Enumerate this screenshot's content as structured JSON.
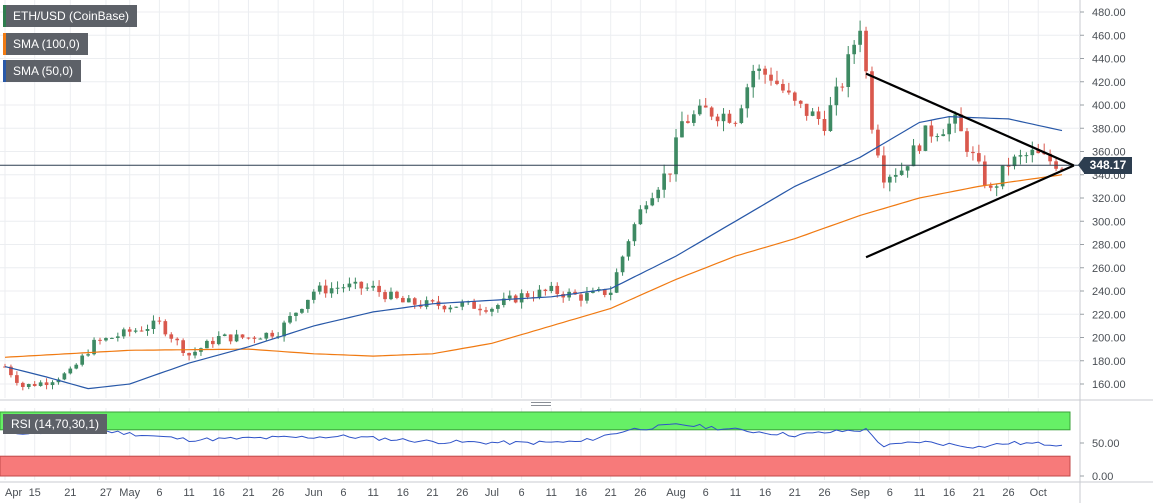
{
  "legend": {
    "symbol": "ETH/USD (CoinBase)",
    "sma100": "SMA (100,0)",
    "sma50": "SMA (50,0)"
  },
  "rsi_legend": "RSI (14,70,30,1)",
  "current_price": "348.17",
  "colors": {
    "bull": "#3e8a63",
    "bear": "#d9584d",
    "sma100": "#f07a12",
    "sma50": "#2858a8",
    "triangle": "#000000",
    "rsi_line": "#2f53c8",
    "rsi_overbought": "#66f066",
    "rsi_oversold": "#f77a7a",
    "symbol_swatch": "#2e7d4e"
  },
  "chart_data": {
    "type": "candlestick",
    "title": "ETH/USD (CoinBase)",
    "y_axis": {
      "range": [
        145,
        488
      ],
      "ticks": [
        160,
        180,
        200,
        220,
        240,
        260,
        280,
        300,
        320,
        340,
        360,
        380,
        400,
        420,
        440,
        460,
        480
      ],
      "tick_labels": [
        "160.00",
        "180.00",
        "200.00",
        "220.00",
        "240.00",
        "260.00",
        "280.00",
        "300.00",
        "320.00",
        "340.00",
        "360.00",
        "380.00",
        "400.00",
        "420.00",
        "440.00",
        "460.00",
        "480.00"
      ],
      "position": "right"
    },
    "x_axis": {
      "start": "2020-04-10",
      "end": "2020-10-05",
      "tick_dates": [
        "2020-04-10",
        "2020-04-15",
        "2020-04-21",
        "2020-04-27",
        "2020-05-01",
        "2020-05-06",
        "2020-05-11",
        "2020-05-16",
        "2020-05-21",
        "2020-05-26",
        "2020-06-01",
        "2020-06-06",
        "2020-06-11",
        "2020-06-16",
        "2020-06-21",
        "2020-06-26",
        "2020-07-01",
        "2020-07-06",
        "2020-07-11",
        "2020-07-16",
        "2020-07-21",
        "2020-07-26",
        "2020-08-01",
        "2020-08-06",
        "2020-08-11",
        "2020-08-16",
        "2020-08-21",
        "2020-08-26",
        "2020-09-01",
        "2020-09-06",
        "2020-09-11",
        "2020-09-16",
        "2020-09-21",
        "2020-09-26",
        "2020-10-01"
      ],
      "tick_labels": [
        "Apr",
        "15",
        "21",
        "27",
        "May",
        "6",
        "11",
        "16",
        "21",
        "26",
        "Jun",
        "6",
        "11",
        "16",
        "21",
        "26",
        "Jul",
        "6",
        "11",
        "16",
        "21",
        "26",
        "Aug",
        "6",
        "11",
        "16",
        "21",
        "26",
        "Sep",
        "6",
        "11",
        "16",
        "21",
        "26",
        "Oct"
      ]
    },
    "price_anchors": [
      [
        "2020-04-10",
        175
      ],
      [
        "2020-04-13",
        158
      ],
      [
        "2020-04-17",
        162
      ],
      [
        "2020-04-21",
        170
      ],
      [
        "2020-04-25",
        195
      ],
      [
        "2020-05-01",
        205
      ],
      [
        "2020-05-06",
        212
      ],
      [
        "2020-05-11",
        185
      ],
      [
        "2020-05-16",
        200
      ],
      [
        "2020-05-21",
        200
      ],
      [
        "2020-05-26",
        205
      ],
      [
        "2020-06-01",
        240
      ],
      [
        "2020-06-06",
        244
      ],
      [
        "2020-06-11",
        242
      ],
      [
        "2020-06-16",
        230
      ],
      [
        "2020-06-21",
        228
      ],
      [
        "2020-06-26",
        228
      ],
      [
        "2020-07-01",
        226
      ],
      [
        "2020-07-06",
        236
      ],
      [
        "2020-07-11",
        240
      ],
      [
        "2020-07-16",
        235
      ],
      [
        "2020-07-21",
        240
      ],
      [
        "2020-07-24",
        285
      ],
      [
        "2020-07-27",
        320
      ],
      [
        "2020-07-31",
        345
      ],
      [
        "2020-08-02",
        385
      ],
      [
        "2020-08-06",
        395
      ],
      [
        "2020-08-11",
        390
      ],
      [
        "2020-08-14",
        430
      ],
      [
        "2020-08-17",
        425
      ],
      [
        "2020-08-21",
        400
      ],
      [
        "2020-08-26",
        385
      ],
      [
        "2020-08-29",
        420
      ],
      [
        "2020-09-01",
        470
      ],
      [
        "2020-09-03",
        385
      ],
      [
        "2020-09-05",
        340
      ],
      [
        "2020-09-08",
        345
      ],
      [
        "2020-09-12",
        375
      ],
      [
        "2020-09-17",
        385
      ],
      [
        "2020-09-21",
        345
      ],
      [
        "2020-09-23",
        325
      ],
      [
        "2020-09-26",
        350
      ],
      [
        "2020-09-30",
        358
      ],
      [
        "2020-10-05",
        348
      ]
    ],
    "sma50_anchors": [
      [
        "2020-04-10",
        175
      ],
      [
        "2020-04-17",
        166
      ],
      [
        "2020-04-24",
        156
      ],
      [
        "2020-05-01",
        160
      ],
      [
        "2020-05-11",
        178
      ],
      [
        "2020-05-21",
        192
      ],
      [
        "2020-06-01",
        210
      ],
      [
        "2020-06-11",
        222
      ],
      [
        "2020-06-21",
        229
      ],
      [
        "2020-07-01",
        232
      ],
      [
        "2020-07-11",
        235
      ],
      [
        "2020-07-21",
        242
      ],
      [
        "2020-08-01",
        270
      ],
      [
        "2020-08-11",
        300
      ],
      [
        "2020-08-21",
        330
      ],
      [
        "2020-09-01",
        355
      ],
      [
        "2020-09-11",
        385
      ],
      [
        "2020-09-16",
        390
      ],
      [
        "2020-09-26",
        388
      ],
      [
        "2020-10-05",
        378
      ]
    ],
    "sma100_anchors": [
      [
        "2020-04-10",
        183
      ],
      [
        "2020-05-01",
        189
      ],
      [
        "2020-05-21",
        190
      ],
      [
        "2020-06-01",
        186
      ],
      [
        "2020-06-11",
        184
      ],
      [
        "2020-06-21",
        186
      ],
      [
        "2020-07-01",
        195
      ],
      [
        "2020-07-11",
        210
      ],
      [
        "2020-07-21",
        225
      ],
      [
        "2020-08-01",
        250
      ],
      [
        "2020-08-11",
        270
      ],
      [
        "2020-08-21",
        285
      ],
      [
        "2020-09-01",
        305
      ],
      [
        "2020-09-11",
        320
      ],
      [
        "2020-09-21",
        330
      ],
      [
        "2020-10-05",
        340
      ]
    ],
    "triangle": {
      "upper": [
        [
          "2020-09-02",
          427
        ],
        [
          "2020-10-07",
          348
        ]
      ],
      "lower": [
        [
          "2020-09-02",
          269
        ],
        [
          "2020-10-07",
          348
        ]
      ]
    },
    "current_price_line": 348.17,
    "rsi": {
      "type": "line",
      "legend": "RSI (14,70,30,1)",
      "range": [
        0,
        100
      ],
      "overbought": 70,
      "oversold": 30,
      "tick_values": [
        0,
        50
      ],
      "tick_labels": [
        "0.00",
        "50.00"
      ],
      "anchors": [
        [
          "2020-04-10",
          65
        ],
        [
          "2020-04-27",
          68
        ],
        [
          "2020-05-11",
          55
        ],
        [
          "2020-05-26",
          58
        ],
        [
          "2020-06-06",
          60
        ],
        [
          "2020-06-21",
          52
        ],
        [
          "2020-07-06",
          50
        ],
        [
          "2020-07-16",
          52
        ],
        [
          "2020-07-24",
          70
        ],
        [
          "2020-08-02",
          78
        ],
        [
          "2020-08-11",
          70
        ],
        [
          "2020-08-21",
          62
        ],
        [
          "2020-08-29",
          68
        ],
        [
          "2020-09-02",
          70
        ],
        [
          "2020-09-05",
          45
        ],
        [
          "2020-09-11",
          52
        ],
        [
          "2020-09-21",
          44
        ],
        [
          "2020-09-26",
          50
        ],
        [
          "2020-10-05",
          48
        ]
      ]
    }
  }
}
